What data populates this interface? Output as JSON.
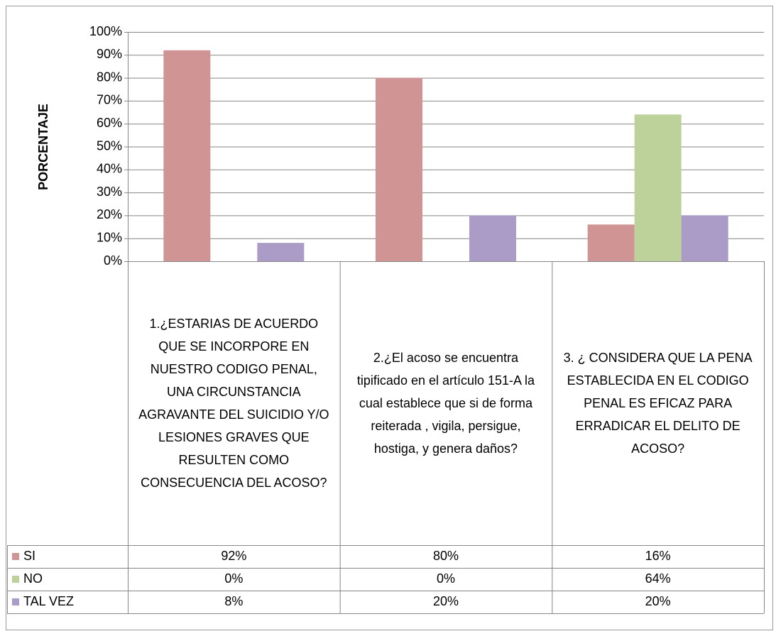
{
  "chart_data": {
    "type": "bar",
    "y_axis_label": "PORCENTAJE",
    "categories": [
      "1.¿ESTARIAS DE ACUERDO QUE SE INCORPORE EN NUESTRO CODIGO PENAL, UNA CIRCUNSTANCIA AGRAVANTE DEL SUICIDIO Y/O LESIONES GRAVES QUE RESULTEN COMO CONSECUENCIA DEL ACOSO?",
      "2.¿El acoso se encuentra tipificado en el artículo 151-A la cual establece que si de forma reiterada , vigila, persigue, hostiga, y genera daños?",
      "3. ¿ CONSIDERA QUE LA PENA ESTABLECIDA EN EL CODIGO PENAL ES EFICAZ PARA ERRADICAR EL DELITO DE ACOSO?"
    ],
    "series": [
      {
        "name": "SI",
        "color": "#d09494",
        "values": [
          92,
          80,
          16
        ],
        "value_labels": [
          "92%",
          "80%",
          "16%"
        ]
      },
      {
        "name": "NO",
        "color": "#bcd29a",
        "values": [
          0,
          0,
          64
        ],
        "value_labels": [
          "0%",
          "0%",
          "64%"
        ]
      },
      {
        "name": "TAL VEZ",
        "color": "#aa9cc6",
        "values": [
          8,
          20,
          20
        ],
        "value_labels": [
          "8%",
          "20%",
          "20%"
        ]
      }
    ],
    "ylim": [
      0,
      100
    ],
    "yticks": [
      {
        "value": 0,
        "label": "0%"
      },
      {
        "value": 10,
        "label": "10%"
      },
      {
        "value": 20,
        "label": "20%"
      },
      {
        "value": 30,
        "label": "30%"
      },
      {
        "value": 40,
        "label": "40%"
      },
      {
        "value": 50,
        "label": "50%"
      },
      {
        "value": 60,
        "label": "60%"
      },
      {
        "value": 70,
        "label": "70%"
      },
      {
        "value": 80,
        "label": "80%"
      },
      {
        "value": 90,
        "label": "90%"
      },
      {
        "value": 100,
        "label": "100%"
      }
    ],
    "grid": true,
    "legend": "table"
  }
}
